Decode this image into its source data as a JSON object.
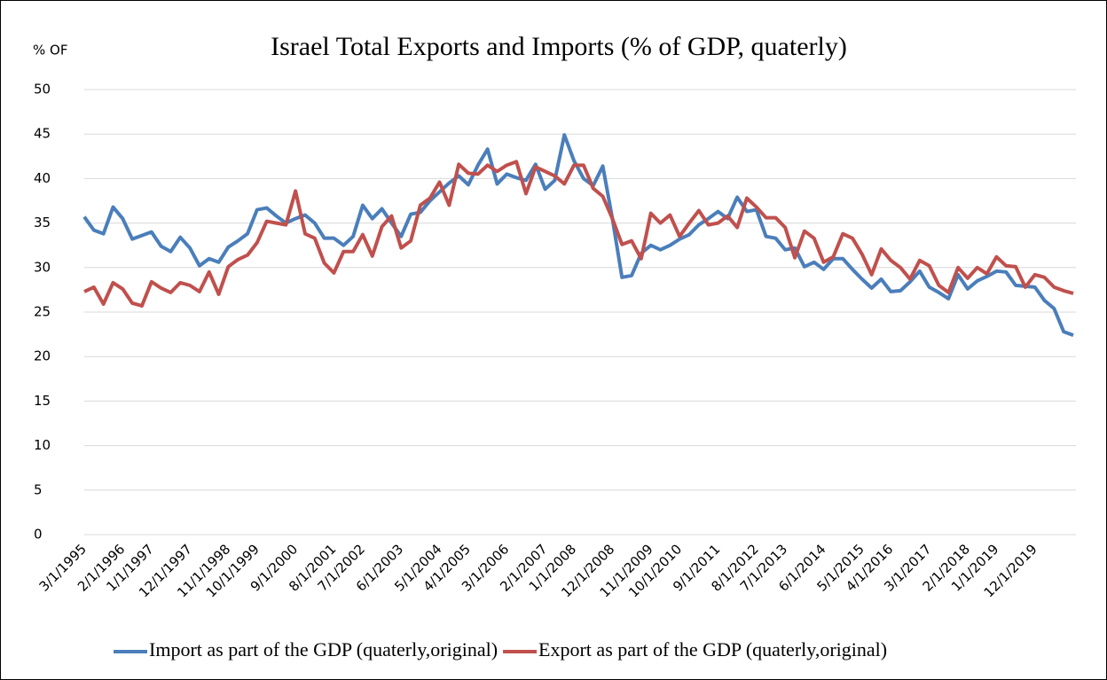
{
  "chart_data": {
    "type": "line",
    "title": "Israel Total Exports and Imports (% of GDP,  quaterly)",
    "y_label": "% OF",
    "categories": [
      "3/1/1995",
      null,
      null,
      null,
      "2/1/1996",
      null,
      null,
      "1/1/1997",
      null,
      null,
      null,
      "12/1/1997",
      null,
      null,
      null,
      "11/1/1998",
      null,
      null,
      "10/1/1999",
      null,
      null,
      null,
      "9/1/2000",
      null,
      null,
      null,
      "8/1/2001",
      null,
      null,
      "7/1/2002",
      null,
      null,
      null,
      "6/1/2003",
      null,
      null,
      null,
      "5/1/2004",
      null,
      null,
      "4/1/2005",
      null,
      null,
      null,
      "3/1/2006",
      null,
      null,
      null,
      "2/1/2007",
      null,
      null,
      "1/1/2008",
      null,
      null,
      null,
      "12/1/2008",
      null,
      null,
      null,
      "11/1/2009",
      null,
      null,
      "10/1/2010",
      null,
      null,
      null,
      "9/1/2011",
      null,
      null,
      null,
      "8/1/2012",
      null,
      null,
      "7/1/2013",
      null,
      null,
      null,
      "6/1/2014",
      null,
      null,
      null,
      "5/1/2015",
      null,
      null,
      "4/1/2016",
      null,
      null,
      null,
      "3/1/2017",
      null,
      null,
      null,
      "2/1/2018",
      null,
      null,
      "1/1/2019",
      null,
      null,
      null,
      "12/1/2019",
      null,
      null,
      null,
      null
    ],
    "series": [
      {
        "name": "Import as part of the GDP (quaterly,original)",
        "color": "#4a7ebb",
        "values": [
          35.7,
          34.2,
          33.8,
          36.8,
          35.5,
          33.2,
          33.6,
          34.0,
          32.4,
          31.8,
          33.4,
          32.2,
          30.2,
          31.0,
          30.6,
          32.3,
          33.0,
          33.8,
          36.5,
          36.7,
          35.8,
          35.0,
          35.5,
          35.9,
          35.0,
          33.3,
          33.3,
          32.5,
          33.5,
          37.0,
          35.5,
          36.6,
          35.0,
          33.5,
          36.0,
          36.2,
          37.5,
          38.5,
          39.5,
          40.3,
          39.3,
          41.5,
          43.3,
          39.4,
          40.5,
          40.1,
          39.8,
          41.6,
          38.8,
          39.8,
          44.9,
          42.0,
          40.0,
          39.2,
          41.4,
          35.5,
          28.9,
          29.1,
          31.6,
          32.5,
          32.0,
          32.5,
          33.2,
          33.7,
          34.8,
          35.5,
          36.3,
          35.5,
          37.9,
          36.3,
          36.5,
          33.5,
          33.3,
          32.0,
          32.2,
          30.1,
          30.6,
          29.8,
          31.0,
          31.0,
          29.8,
          28.7,
          27.7,
          28.7,
          27.3,
          27.4,
          28.4,
          29.6,
          27.8,
          27.2,
          26.5,
          29.2,
          27.6,
          28.5,
          29.0,
          29.6,
          29.5,
          28.0,
          27.9,
          27.8,
          26.3,
          25.4,
          22.8,
          22.4
        ]
      },
      {
        "name": "Export as part of the GDP (quaterly,original)",
        "color": "#c0504d",
        "values": [
          27.3,
          27.8,
          25.9,
          28.3,
          27.6,
          26.0,
          25.7,
          28.4,
          27.7,
          27.2,
          28.3,
          28.0,
          27.3,
          29.5,
          27.0,
          30.1,
          30.9,
          31.4,
          32.8,
          35.2,
          35.0,
          34.8,
          38.6,
          33.8,
          33.3,
          30.5,
          29.4,
          31.8,
          31.8,
          33.7,
          31.3,
          34.6,
          35.8,
          32.2,
          33.0,
          37.0,
          37.8,
          39.6,
          37.0,
          41.6,
          40.6,
          40.5,
          41.5,
          40.8,
          41.5,
          41.9,
          38.3,
          41.3,
          40.8,
          40.3,
          39.4,
          41.5,
          41.5,
          38.9,
          38.0,
          35.5,
          32.6,
          33.0,
          31.0,
          36.1,
          35.0,
          35.9,
          33.5,
          35.0,
          36.4,
          34.8,
          35.0,
          35.8,
          34.5,
          37.8,
          36.8,
          35.6,
          35.6,
          34.5,
          31.1,
          34.1,
          33.3,
          30.6,
          31.2,
          33.8,
          33.3,
          31.5,
          29.2,
          32.1,
          30.8,
          30.0,
          28.7,
          30.8,
          30.2,
          28.0,
          27.2,
          30.0,
          28.8,
          30.0,
          29.3,
          31.2,
          30.2,
          30.1,
          27.8,
          29.2,
          28.9,
          27.8,
          27.4,
          27.1
        ]
      }
    ],
    "ylim": [
      0,
      50
    ],
    "yticks": [
      0,
      5,
      10,
      15,
      20,
      25,
      30,
      35,
      40,
      45,
      50
    ],
    "grid": true,
    "legend": "bottom"
  }
}
